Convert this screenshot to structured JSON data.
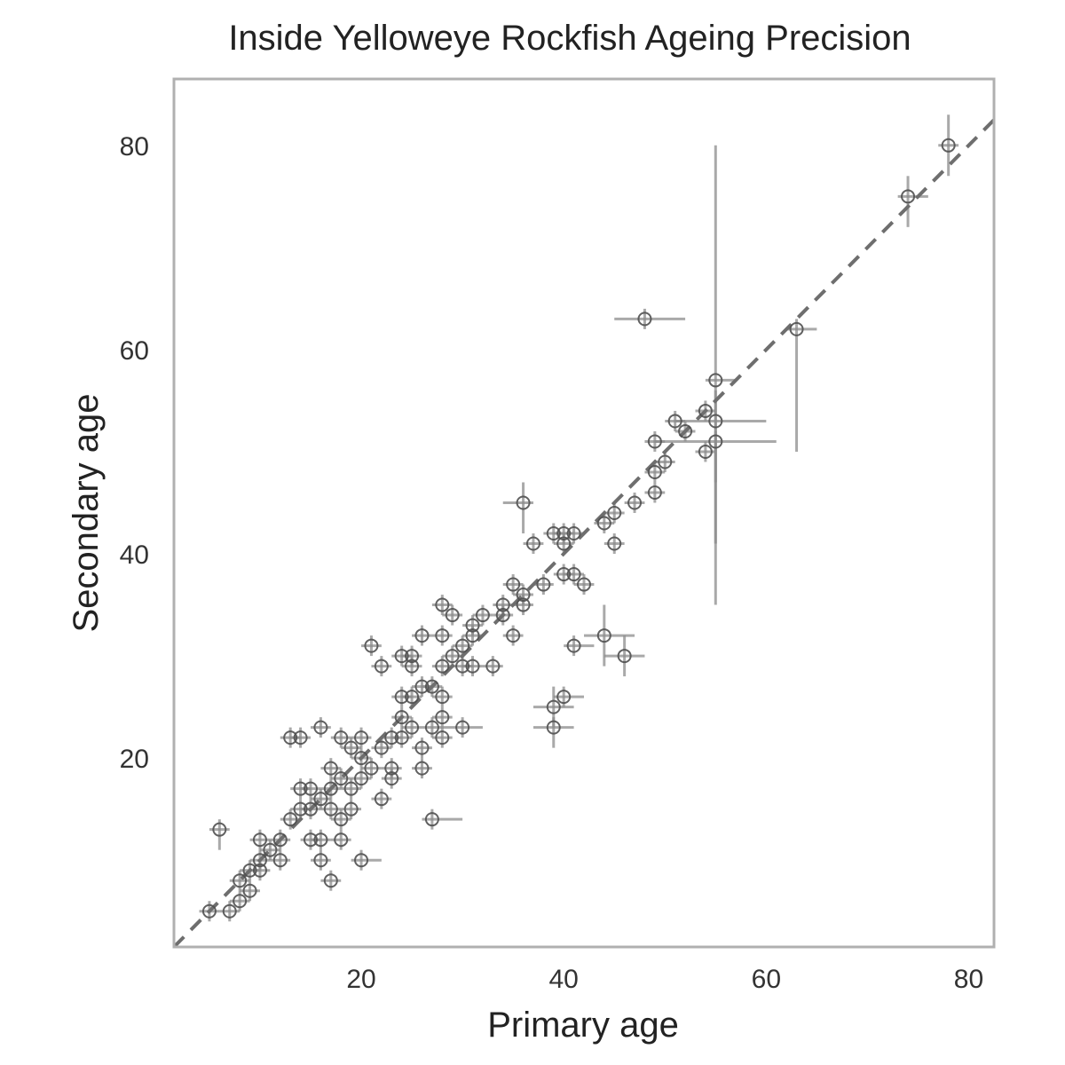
{
  "chart_data": {
    "type": "scatter",
    "title": "Inside Yelloweye Rockfish Ageing Precision",
    "xlabel": "Primary age",
    "ylabel": "Secondary age",
    "xlim": [
      1.5,
      82.5
    ],
    "ylim": [
      1.5,
      86.5
    ],
    "x_ticks": [
      20,
      40,
      60,
      80
    ],
    "y_ticks": [
      20,
      40,
      60,
      80
    ],
    "grid": false,
    "legend": "none",
    "reference_line": "1:1 (y = x), dashed",
    "colors": {
      "points": "#505050",
      "error_bars": "#8c8c8c",
      "reference_line": "#6e6e6e",
      "frame": "#b0b0b0",
      "text": "#222222"
    },
    "points": [
      {
        "x": 5,
        "y": 5
      },
      {
        "x": 7,
        "y": 5
      },
      {
        "x": 8,
        "y": 6
      },
      {
        "x": 8,
        "y": 8
      },
      {
        "x": 9,
        "y": 7
      },
      {
        "x": 9,
        "y": 9
      },
      {
        "x": 10,
        "y": 9
      },
      {
        "x": 10,
        "y": 10
      },
      {
        "x": 10,
        "y": 12
      },
      {
        "x": 11,
        "y": 11
      },
      {
        "x": 12,
        "y": 10
      },
      {
        "x": 12,
        "y": 12
      },
      {
        "x": 6,
        "y": 13,
        "xerr": [
          5,
          7
        ],
        "yerr": [
          11,
          14
        ]
      },
      {
        "x": 13,
        "y": 14
      },
      {
        "x": 13,
        "y": 22
      },
      {
        "x": 14,
        "y": 22
      },
      {
        "x": 14,
        "y": 17
      },
      {
        "x": 14,
        "y": 15
      },
      {
        "x": 15,
        "y": 12
      },
      {
        "x": 15,
        "y": 15
      },
      {
        "x": 15,
        "y": 17
      },
      {
        "x": 16,
        "y": 23
      },
      {
        "x": 16,
        "y": 16
      },
      {
        "x": 16,
        "y": 12
      },
      {
        "x": 16,
        "y": 10
      },
      {
        "x": 17,
        "y": 8,
        "xerr": [
          16,
          18
        ],
        "yerr": [
          7,
          9
        ]
      },
      {
        "x": 17,
        "y": 15
      },
      {
        "x": 17,
        "y": 19
      },
      {
        "x": 17,
        "y": 17
      },
      {
        "x": 18,
        "y": 14
      },
      {
        "x": 18,
        "y": 12
      },
      {
        "x": 18,
        "y": 18
      },
      {
        "x": 18,
        "y": 22
      },
      {
        "x": 19,
        "y": 17
      },
      {
        "x": 19,
        "y": 15
      },
      {
        "x": 19,
        "y": 21
      },
      {
        "x": 20,
        "y": 10,
        "xerr": [
          19,
          22
        ],
        "yerr": [
          9,
          11
        ]
      },
      {
        "x": 20,
        "y": 18
      },
      {
        "x": 20,
        "y": 20
      },
      {
        "x": 20,
        "y": 22
      },
      {
        "x": 21,
        "y": 19
      },
      {
        "x": 21,
        "y": 31,
        "xerr": [
          20,
          22
        ],
        "yerr": [
          30,
          32
        ]
      },
      {
        "x": 22,
        "y": 16
      },
      {
        "x": 22,
        "y": 21
      },
      {
        "x": 22,
        "y": 29
      },
      {
        "x": 23,
        "y": 18
      },
      {
        "x": 23,
        "y": 22
      },
      {
        "x": 23,
        "y": 19
      },
      {
        "x": 24,
        "y": 22
      },
      {
        "x": 24,
        "y": 24
      },
      {
        "x": 24,
        "y": 26
      },
      {
        "x": 24,
        "y": 30
      },
      {
        "x": 25,
        "y": 23
      },
      {
        "x": 25,
        "y": 26
      },
      {
        "x": 25,
        "y": 29
      },
      {
        "x": 25,
        "y": 30
      },
      {
        "x": 26,
        "y": 19
      },
      {
        "x": 26,
        "y": 21
      },
      {
        "x": 26,
        "y": 27
      },
      {
        "x": 26,
        "y": 32
      },
      {
        "x": 27,
        "y": 14,
        "xerr": [
          26,
          30
        ],
        "yerr": [
          13,
          15
        ]
      },
      {
        "x": 27,
        "y": 23
      },
      {
        "x": 27,
        "y": 27
      },
      {
        "x": 28,
        "y": 22
      },
      {
        "x": 28,
        "y": 24
      },
      {
        "x": 28,
        "y": 26
      },
      {
        "x": 28,
        "y": 29
      },
      {
        "x": 28,
        "y": 32
      },
      {
        "x": 28,
        "y": 35
      },
      {
        "x": 29,
        "y": 30
      },
      {
        "x": 29,
        "y": 34
      },
      {
        "x": 30,
        "y": 23,
        "xerr": [
          28,
          32
        ],
        "yerr": [
          22,
          24
        ]
      },
      {
        "x": 30,
        "y": 29
      },
      {
        "x": 30,
        "y": 31
      },
      {
        "x": 31,
        "y": 29
      },
      {
        "x": 31,
        "y": 32
      },
      {
        "x": 31,
        "y": 33
      },
      {
        "x": 32,
        "y": 34
      },
      {
        "x": 33,
        "y": 29
      },
      {
        "x": 34,
        "y": 34
      },
      {
        "x": 34,
        "y": 35
      },
      {
        "x": 35,
        "y": 32
      },
      {
        "x": 35,
        "y": 37
      },
      {
        "x": 36,
        "y": 35
      },
      {
        "x": 36,
        "y": 36
      },
      {
        "x": 36,
        "y": 45,
        "xerr": [
          34,
          37
        ],
        "yerr": [
          42,
          47
        ]
      },
      {
        "x": 37,
        "y": 41
      },
      {
        "x": 38,
        "y": 37
      },
      {
        "x": 39,
        "y": 42
      },
      {
        "x": 39,
        "y": 25,
        "xerr": [
          37,
          41
        ],
        "yerr": [
          23,
          27
        ]
      },
      {
        "x": 39,
        "y": 23,
        "xerr": [
          37,
          41
        ],
        "yerr": [
          21,
          24
        ]
      },
      {
        "x": 40,
        "y": 26,
        "xerr": [
          39,
          42
        ],
        "yerr": [
          25,
          27
        ]
      },
      {
        "x": 40,
        "y": 38
      },
      {
        "x": 40,
        "y": 41
      },
      {
        "x": 40,
        "y": 42
      },
      {
        "x": 41,
        "y": 31,
        "xerr": [
          40,
          43
        ],
        "yerr": [
          30,
          32
        ]
      },
      {
        "x": 41,
        "y": 38
      },
      {
        "x": 41,
        "y": 42
      },
      {
        "x": 42,
        "y": 37
      },
      {
        "x": 44,
        "y": 32,
        "xerr": [
          42,
          47
        ],
        "yerr": [
          29,
          35
        ]
      },
      {
        "x": 44,
        "y": 43
      },
      {
        "x": 45,
        "y": 41
      },
      {
        "x": 45,
        "y": 44
      },
      {
        "x": 46,
        "y": 30,
        "xerr": [
          44,
          48
        ],
        "yerr": [
          28,
          32
        ]
      },
      {
        "x": 47,
        "y": 45
      },
      {
        "x": 48,
        "y": 63,
        "xerr": [
          45,
          52
        ],
        "yerr": [
          62,
          64
        ]
      },
      {
        "x": 49,
        "y": 46
      },
      {
        "x": 49,
        "y": 48
      },
      {
        "x": 49,
        "y": 51
      },
      {
        "x": 50,
        "y": 49
      },
      {
        "x": 51,
        "y": 53
      },
      {
        "x": 52,
        "y": 52
      },
      {
        "x": 54,
        "y": 54
      },
      {
        "x": 54,
        "y": 50
      },
      {
        "x": 55,
        "y": 57,
        "xerr": [
          54,
          57
        ],
        "yerr": [
          35,
          80
        ]
      },
      {
        "x": 55,
        "y": 53,
        "xerr": [
          51,
          60
        ],
        "yerr": [
          41,
          56
        ]
      },
      {
        "x": 55,
        "y": 51,
        "xerr": [
          49,
          61
        ],
        "yerr": [
          47,
          52
        ]
      },
      {
        "x": 63,
        "y": 62,
        "xerr": [
          62,
          65
        ],
        "yerr": [
          50,
          63
        ]
      },
      {
        "x": 74,
        "y": 75,
        "xerr": [
          73,
          76
        ],
        "yerr": [
          72,
          77
        ]
      },
      {
        "x": 78,
        "y": 80,
        "xerr": [
          77,
          79
        ],
        "yerr": [
          77,
          83
        ]
      }
    ]
  }
}
